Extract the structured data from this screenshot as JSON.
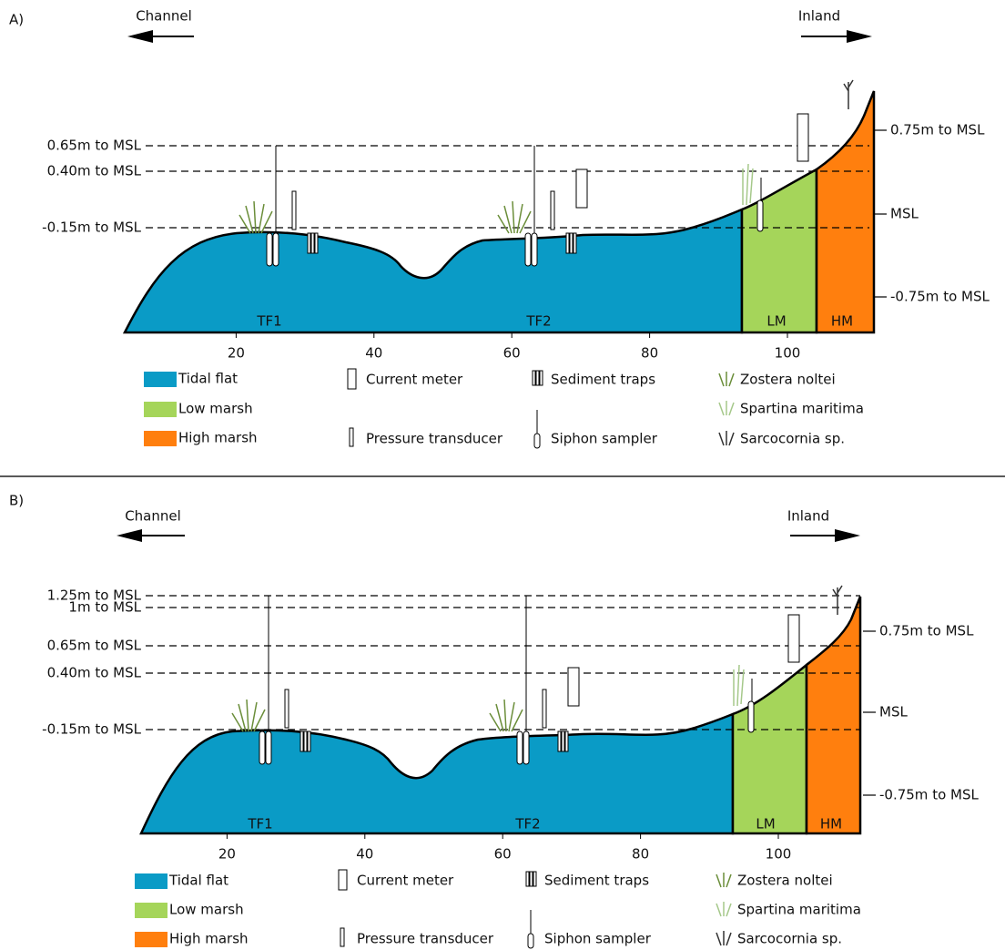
{
  "panels": [
    {
      "label": "A)",
      "channel": "Channel",
      "inland": "Inland",
      "levels_left": [
        "0.65m to MSL",
        "0.40m to MSL",
        "-0.15m to MSL"
      ],
      "levels_right": [
        "0.75m to MSL",
        "MSL",
        "-0.75m to MSL"
      ],
      "zones": [
        "TF1",
        "TF2",
        "LM",
        "HM"
      ],
      "x_ticks": [
        20,
        40,
        60,
        80,
        100
      ],
      "legend": {
        "zones": [
          "Tidal flat",
          "Low marsh",
          "High marsh"
        ],
        "instruments": [
          "Current meter",
          "Pressure transducer",
          "Sediment traps",
          "Siphon sampler"
        ],
        "vegetation": [
          "Zostera noltei",
          "Spartina maritima",
          "Sarcocornia sp."
        ]
      }
    },
    {
      "label": "B)",
      "channel": "Channel",
      "inland": "Inland",
      "levels_left": [
        "1.25m to MSL",
        "1m to MSL",
        "0.65m to MSL",
        "0.40m to MSL",
        "-0.15m to MSL"
      ],
      "levels_right": [
        "0.75m to MSL",
        "MSL",
        "-0.75m to MSL"
      ],
      "zones": [
        "TF1",
        "TF2",
        "LM",
        "HM"
      ],
      "x_ticks": [
        20,
        40,
        60,
        80,
        100
      ],
      "legend": {
        "zones": [
          "Tidal flat",
          "Low marsh",
          "High marsh"
        ],
        "instruments": [
          "Current meter",
          "Pressure transducer",
          "Sediment traps",
          "Siphon sampler"
        ],
        "vegetation": [
          "Zostera noltei",
          "Spartina maritima",
          "Sarcocornia sp."
        ]
      }
    }
  ]
}
